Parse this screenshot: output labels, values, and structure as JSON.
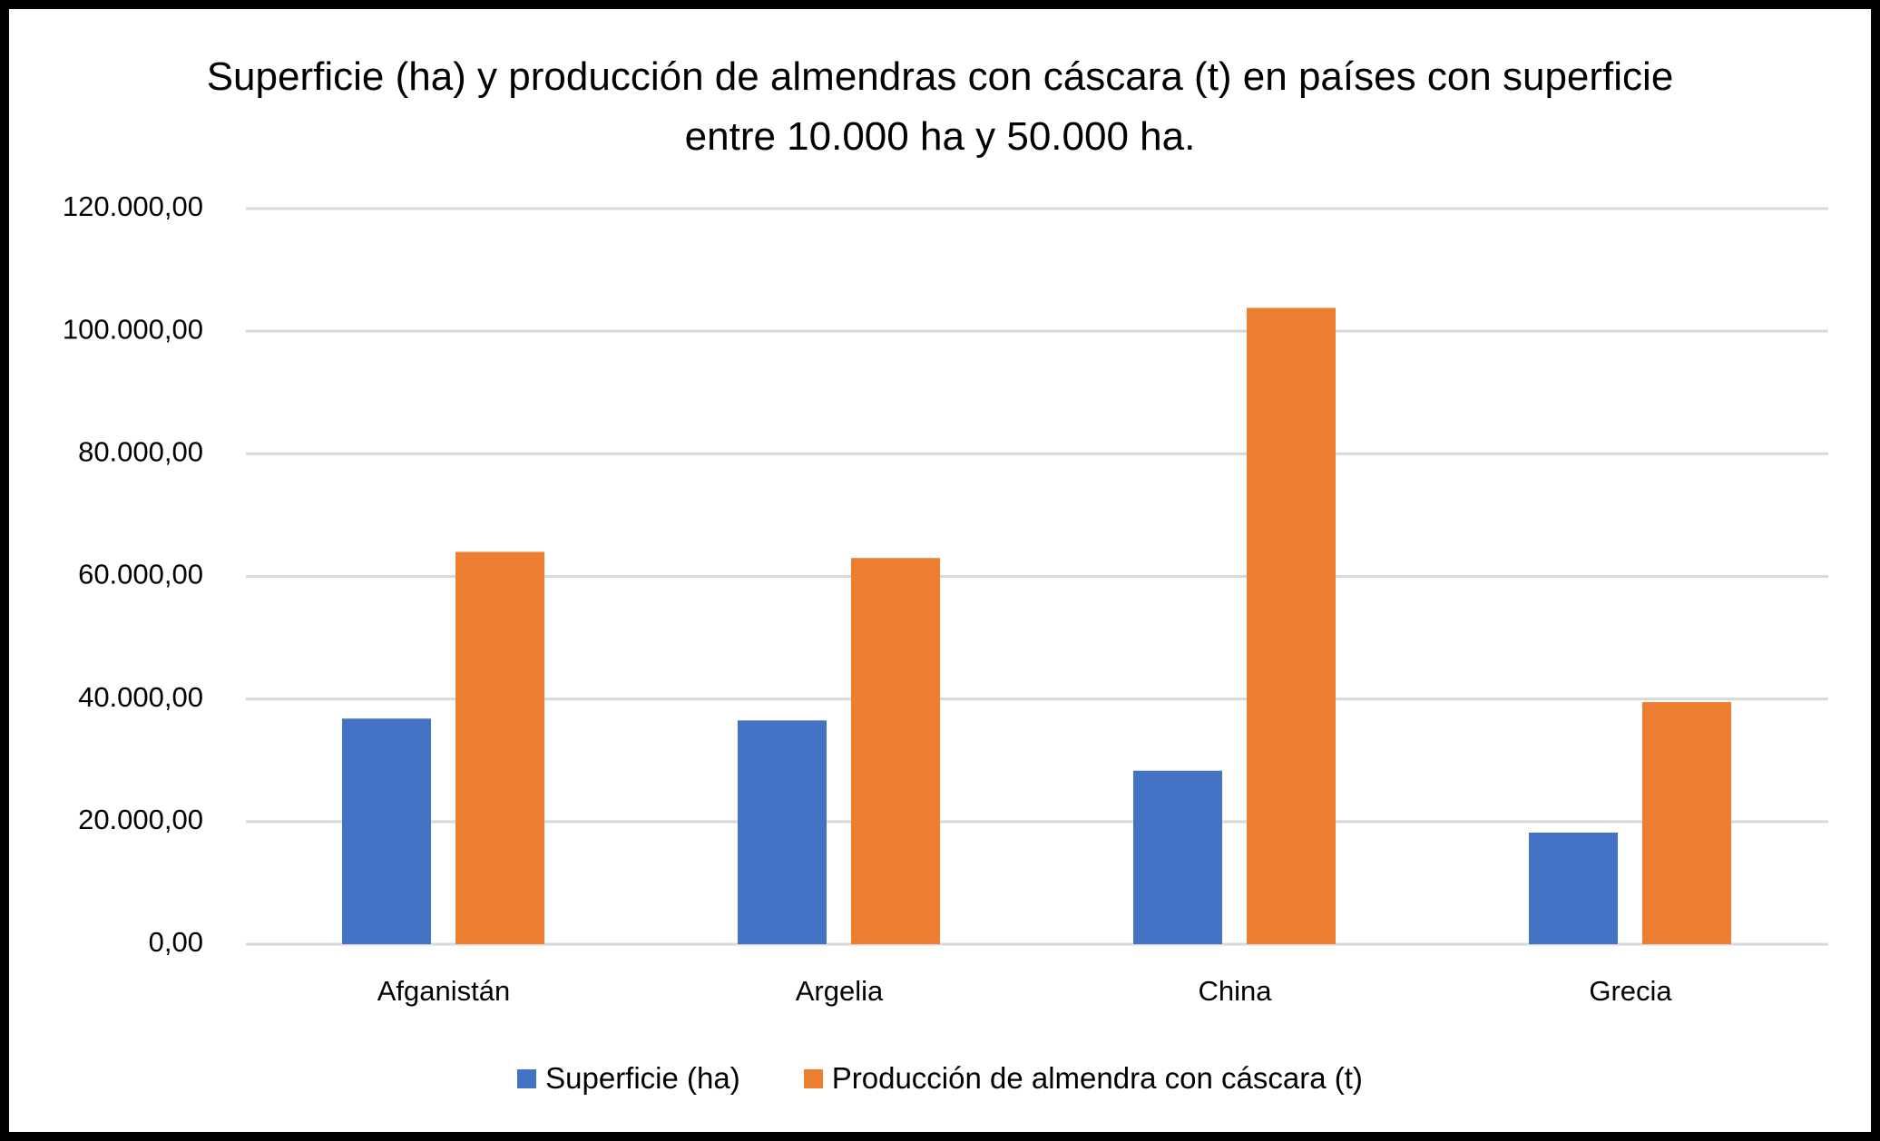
{
  "chart_data": {
    "type": "bar",
    "title": "Superficie (ha) y producción de almendras con cáscara (t) en países con superficie entre 10.000 ha y 50.000 ha.",
    "categories": [
      "Afganistán",
      "Argelia",
      "China",
      "Grecia"
    ],
    "series": [
      {
        "name": "Superficie (ha)",
        "color": "#4472c4",
        "values": [
          36800,
          36500,
          28300,
          18200
        ]
      },
      {
        "name": "Producción de almendra con cáscara (t)",
        "color": "#ed7d31",
        "values": [
          64000,
          63000,
          103800,
          39500
        ]
      }
    ],
    "ylim": [
      0,
      120000
    ],
    "yticks": [
      {
        "value": 0,
        "label": "0,00"
      },
      {
        "value": 20000,
        "label": "20.000,00"
      },
      {
        "value": 40000,
        "label": "40.000,00"
      },
      {
        "value": 60000,
        "label": "60.000,00"
      },
      {
        "value": 80000,
        "label": "80.000,00"
      },
      {
        "value": 100000,
        "label": "100.000,00"
      },
      {
        "value": 120000,
        "label": "120.000,00"
      }
    ],
    "grid": true,
    "legend": "bottom"
  }
}
